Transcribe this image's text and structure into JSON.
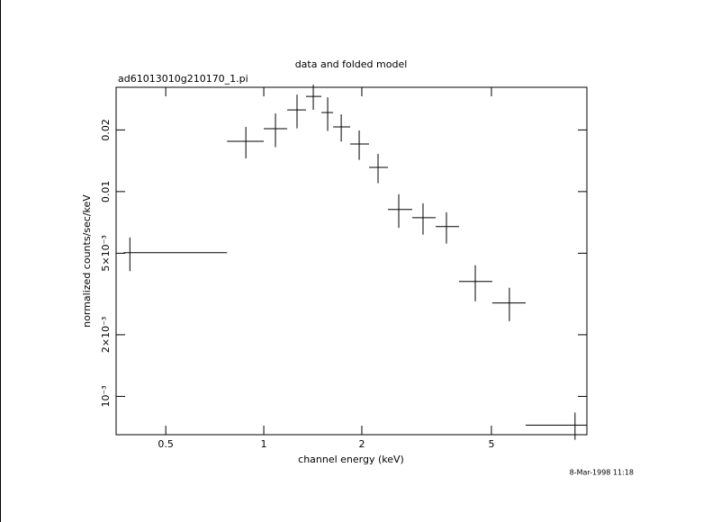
{
  "chart_data": {
    "type": "scatter",
    "title": "data and folded model",
    "subtitle": "ad61013010g210170_1.pi",
    "x_label": "channel energy (keV)",
    "y_label": "normalized counts/sec/keV",
    "annotation": "8-Mar-1998 11:18",
    "xlog": true,
    "ylog": true,
    "color": "#000000",
    "xlim": [
      0.352,
      9.82
    ],
    "ylim": [
      0.00065,
      0.0323
    ],
    "xticks": [
      0.5,
      1,
      2,
      5
    ],
    "yticks": [
      {
        "value": 0.02,
        "label": "0.02"
      },
      {
        "value": 0.01,
        "label": "0.01"
      },
      {
        "value": 0.005,
        "label": "5×10⁻³"
      },
      {
        "value": 0.002,
        "label": "2×10⁻³"
      },
      {
        "value": 0.001,
        "label": "10⁻³"
      }
    ],
    "series": [
      {
        "x": [
          0.388,
          0.881,
          1.086,
          1.265,
          1.419,
          1.571,
          1.729,
          1.963,
          2.243,
          2.597,
          3.083,
          3.638,
          4.461,
          5.677,
          9.03
        ],
        "xlow": [
          0.371,
          0.771,
          1.0,
          1.18,
          1.348,
          1.503,
          1.633,
          1.842,
          2.105,
          2.406,
          2.856,
          3.371,
          3.976,
          5.03,
          6.368
        ],
        "xhigh": [
          0.771,
          1.0,
          1.18,
          1.348,
          1.503,
          1.633,
          1.842,
          2.105,
          2.406,
          2.856,
          3.371,
          3.976,
          5.03,
          6.368,
          9.82
        ],
        "y": [
          0.00503,
          0.0176,
          0.02028,
          0.02506,
          0.02917,
          0.02432,
          0.02069,
          0.01708,
          0.01313,
          0.00818,
          0.00746,
          0.00675,
          0.00364,
          0.00286,
          0.000724
        ],
        "yerr": [
          0.00094,
          0.00308,
          0.0038,
          0.0047,
          0.0041,
          0.00455,
          0.00314,
          0.0028,
          0.00215,
          0.00153,
          0.0013,
          0.00118,
          0.00073,
          0.00053,
          0.00011
        ]
      }
    ]
  }
}
